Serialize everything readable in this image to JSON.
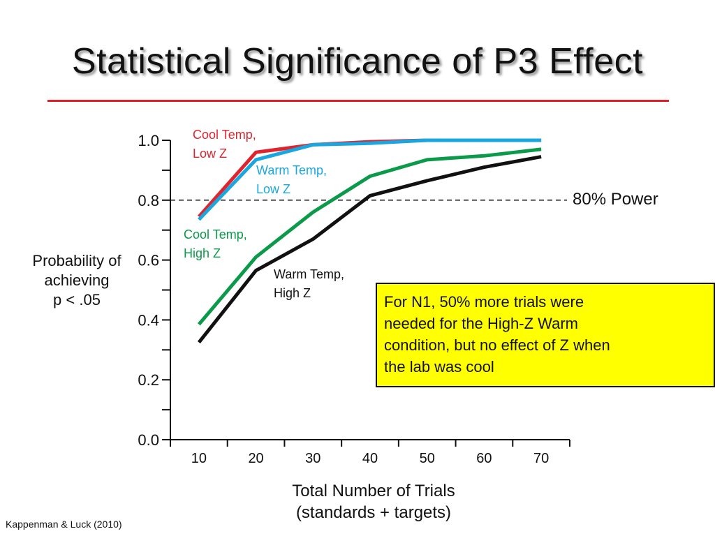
{
  "slide": {
    "title": "Statistical Significance of P3 Effect",
    "title_rule_color": "#e41e26",
    "citation": "Kappenman & Luck (2010)"
  },
  "callout": {
    "lines": [
      "For N1, 50% more trials were",
      "needed for the High-Z Warm",
      "condition, but no effect of Z when",
      "the lab was cool"
    ],
    "background": "#ffff00"
  },
  "chart_data": {
    "type": "line",
    "x": [
      10,
      20,
      30,
      40,
      50,
      60,
      70
    ],
    "xlim": [
      5,
      75
    ],
    "ylim": [
      0,
      1
    ],
    "yticks": [
      0.0,
      0.2,
      0.4,
      0.6,
      0.8,
      1.0
    ],
    "ytick_labels": [
      "0.0",
      "0.2",
      "0.4",
      "0.6",
      "0.8",
      "1.0"
    ],
    "xtick_labels": [
      "10",
      "20",
      "30",
      "40",
      "50",
      "60",
      "70"
    ],
    "ylabel_lines": [
      "Probability of",
      "achieving",
      "p < .05"
    ],
    "xlabel_lines": [
      "Total Number of Trials",
      "(standards + targets)"
    ],
    "reference_line": {
      "y": 0.8,
      "style": "dashed",
      "label": "80% Power"
    },
    "grid": false,
    "series": [
      {
        "name_lines": [
          "Cool Temp,",
          "Low Z"
        ],
        "color": "#e0242e",
        "values": [
          0.745,
          0.96,
          0.985,
          0.995,
          1.0,
          1.0,
          1.0
        ]
      },
      {
        "name_lines": [
          "Warm Temp,",
          "Low Z"
        ],
        "color": "#1aa7e0",
        "values": [
          0.735,
          0.935,
          0.985,
          0.99,
          1.0,
          1.0,
          1.0
        ]
      },
      {
        "name_lines": [
          "Cool Temp,",
          "High Z"
        ],
        "color": "#0a9a4a",
        "values": [
          0.385,
          0.61,
          0.76,
          0.88,
          0.935,
          0.948,
          0.97
        ]
      },
      {
        "name_lines": [
          "Warm Temp,",
          "High Z"
        ],
        "color": "#111111",
        "values": [
          0.325,
          0.565,
          0.67,
          0.815,
          0.865,
          0.91,
          0.945
        ]
      }
    ]
  }
}
